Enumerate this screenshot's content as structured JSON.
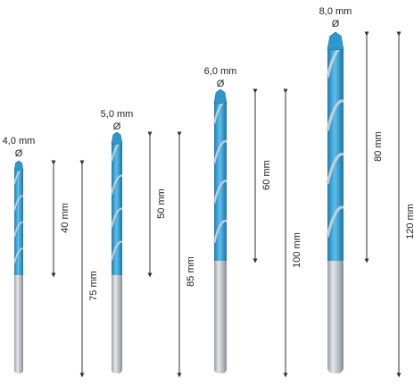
{
  "colors": {
    "background": "#ffffff",
    "shank": "#b9bec3",
    "shank_dark": "#8e949a",
    "flute": "#3aa7da",
    "flute_dark": "#1e7fb3",
    "dimension_line": "#333333"
  },
  "bits": [
    {
      "diameter_label": "4,0 mm",
      "diameter_symbol": "Ø",
      "working_length_label": "40 mm",
      "total_length_label": "75 mm",
      "working_length_mm": 40,
      "total_length_mm": 75
    },
    {
      "diameter_label": "5,0 mm",
      "diameter_symbol": "Ø",
      "working_length_label": "50 mm",
      "total_length_label": "85 mm",
      "working_length_mm": 50,
      "total_length_mm": 85
    },
    {
      "diameter_label": "6,0 mm",
      "diameter_symbol": "Ø",
      "working_length_label": "60 mm",
      "total_length_label": "100 mm",
      "working_length_mm": 60,
      "total_length_mm": 100
    },
    {
      "diameter_label": "8,0 mm",
      "diameter_symbol": "Ø",
      "working_length_label": "80 mm",
      "total_length_label": "120 mm",
      "working_length_mm": 80,
      "total_length_mm": 120
    }
  ]
}
